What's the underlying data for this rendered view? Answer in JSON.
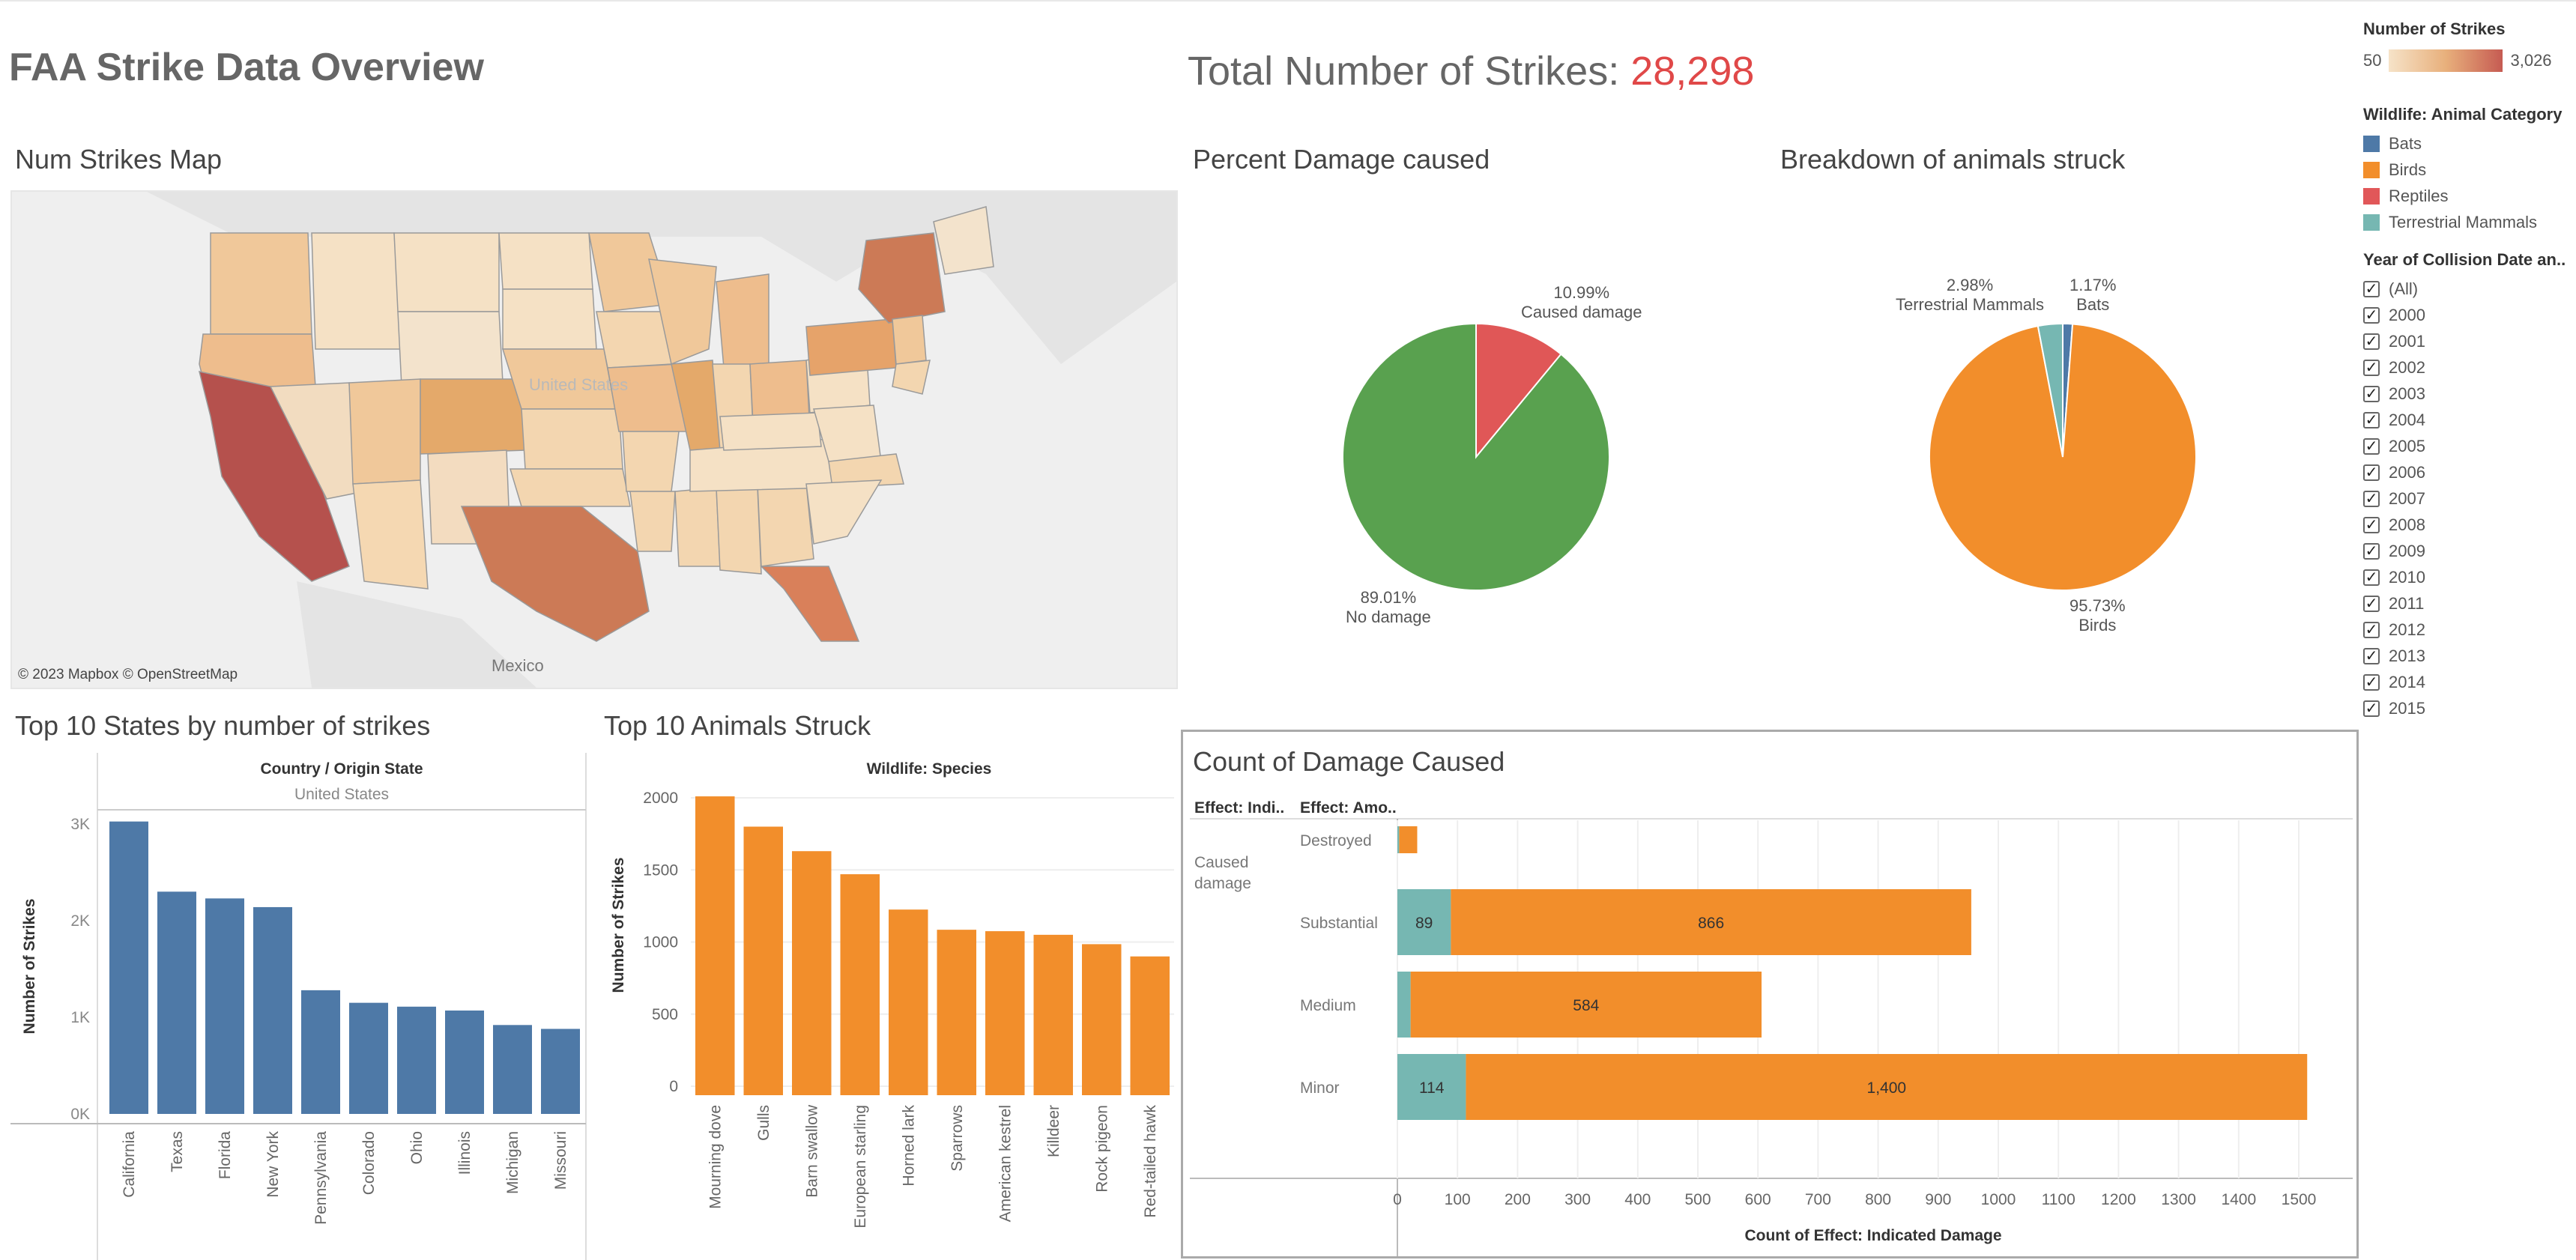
{
  "header": {
    "title": "FAA Strike Data Overview",
    "total_label": "Total Number of Strikes:",
    "total_value": "28,298"
  },
  "map": {
    "title": "Num Strikes Map",
    "attribution": "© 2023 Mapbox  © OpenStreetMap",
    "country_label": "United States",
    "mexico_label": "Mexico"
  },
  "damage_pie": {
    "title": "Percent Damage caused",
    "slices": [
      {
        "label": "Caused damage",
        "pct": "10.99%",
        "value": 10.99,
        "color": "#e05757"
      },
      {
        "label": "No damage",
        "pct": "89.01%",
        "value": 89.01,
        "color": "#59a14f"
      }
    ]
  },
  "animal_pie": {
    "title": "Breakdown of animals struck",
    "slices": [
      {
        "label": "Bats",
        "pct": "1.17%",
        "value": 1.17,
        "color": "#4e79a7"
      },
      {
        "label": "Birds",
        "pct": "95.73%",
        "value": 95.73,
        "color": "#f28e2b"
      },
      {
        "label": "Terrestrial Mammals",
        "pct": "2.98%",
        "value": 2.98,
        "color": "#76b7b2"
      }
    ]
  },
  "legend": {
    "strikes_title": "Number of Strikes",
    "strikes_min": "50",
    "strikes_max": "3,026",
    "category_title": "Wildlife: Animal Category",
    "categories": [
      {
        "label": "Bats",
        "color": "#4e79a7"
      },
      {
        "label": "Birds",
        "color": "#f28e2b"
      },
      {
        "label": "Reptiles",
        "color": "#e15759"
      },
      {
        "label": "Terrestrial Mammals",
        "color": "#76b7b2"
      }
    ],
    "year_title": "Year of Collision Date an..",
    "years": [
      "(All)",
      "2000",
      "2001",
      "2002",
      "2003",
      "2004",
      "2005",
      "2006",
      "2007",
      "2008",
      "2009",
      "2010",
      "2011",
      "2012",
      "2013",
      "2014",
      "2015"
    ]
  },
  "states_chart": {
    "title": "Top 10 States by number of strikes",
    "header_label": "Country / Origin State",
    "header_sub": "United States",
    "ylabel": "Number of Strikes",
    "y_ticks": [
      "0K",
      "1K",
      "2K",
      "3K"
    ],
    "chart_data": {
      "type": "bar",
      "categories": [
        "California",
        "Texas",
        "Florida",
        "New York",
        "Pennsylvania",
        "Colorado",
        "Ohio",
        "Illinois",
        "Michigan",
        "Missouri"
      ],
      "values": [
        3026,
        2300,
        2230,
        2140,
        1280,
        1150,
        1110,
        1070,
        920,
        880
      ],
      "ylabel": "Number of Strikes",
      "ylim": [
        0,
        3000
      ],
      "color": "#4e79a7"
    }
  },
  "animals_chart": {
    "title": "Top 10 Animals Struck",
    "header_label": "Wildlife: Species",
    "ylabel": "Number of Strikes",
    "y_ticks": [
      "0",
      "500",
      "1000",
      "1500",
      "2000"
    ],
    "chart_data": {
      "type": "bar",
      "categories": [
        "Mourning dove",
        "Gulls",
        "Barn swallow",
        "European starling",
        "Horned lark",
        "Sparrows",
        "American kestrel",
        "Killdeer",
        "Rock pigeon",
        "Red-tailed hawk"
      ],
      "values": [
        2010,
        1800,
        1630,
        1470,
        1225,
        1085,
        1075,
        1050,
        985,
        900
      ],
      "ylabel": "Number of Strikes",
      "ylim": [
        0,
        2000
      ],
      "color": "#f28e2b"
    }
  },
  "damage_chart": {
    "title": "Count of Damage Caused",
    "col1_header": "Effect: Indi..",
    "col2_header": "Effect: Amo..",
    "group_label": "Caused damage",
    "xlabel": "Count of Effect: Indicated Damage",
    "x_ticks": [
      "0",
      "100",
      "200",
      "300",
      "400",
      "500",
      "600",
      "700",
      "800",
      "900",
      "1000",
      "1100",
      "1200",
      "1300",
      "1400",
      "1500"
    ],
    "chart_data": {
      "type": "bar",
      "orientation": "horizontal-stacked",
      "categories": [
        "Destroyed",
        "Substantial",
        "Medium",
        "Minor"
      ],
      "series": [
        {
          "name": "Terrestrial Mammals",
          "values": [
            3,
            89,
            22,
            114
          ],
          "labels": [
            "",
            "89",
            "",
            "114"
          ],
          "color": "#76b7b2"
        },
        {
          "name": "Birds",
          "values": [
            30,
            866,
            584,
            1400
          ],
          "labels": [
            "",
            "866",
            "584",
            "1,400"
          ],
          "color": "#f28e2b"
        }
      ],
      "xlabel": "Count of Effect: Indicated Damage",
      "xlim": [
        0,
        1500
      ]
    }
  }
}
